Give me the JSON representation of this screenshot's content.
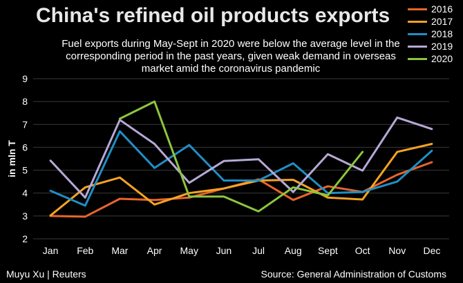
{
  "header": {
    "title": "China's refined oil products exports",
    "subtitle": "Fuel exports during May-Sept in 2020 were below the average level in the corresponding period in the past years, given weak demand in overseas market amid the coronavirus pandemic"
  },
  "footer": {
    "credit": "Muyu Xu | Reuters",
    "source": "Source: General Administration of Customs"
  },
  "chart_data": {
    "type": "line",
    "title": "China's refined oil products exports",
    "ylabel": "in mln T",
    "xlabel": "",
    "categories": [
      "Jan",
      "Feb",
      "Mar",
      "Apr",
      "May",
      "Jun",
      "Jul",
      "Aug",
      "Sept",
      "Oct",
      "Nov",
      "Dec"
    ],
    "ylim": [
      2,
      9
    ],
    "yticks": [
      2,
      3,
      4,
      5,
      6,
      7,
      8,
      9
    ],
    "grid": true,
    "legend": "top-right",
    "series": [
      {
        "name": "2016",
        "color": "#e8652c",
        "values": [
          3.0,
          2.97,
          3.75,
          3.7,
          3.8,
          4.2,
          4.6,
          3.7,
          4.3,
          4.05,
          4.8,
          5.35
        ]
      },
      {
        "name": "2017",
        "color": "#f6a324",
        "values": [
          3.02,
          4.25,
          4.68,
          3.5,
          4.0,
          4.2,
          4.55,
          4.58,
          3.8,
          3.72,
          5.8,
          6.15
        ]
      },
      {
        "name": "2018",
        "color": "#1f8fc6",
        "values": [
          4.1,
          3.45,
          6.7,
          5.1,
          6.1,
          4.55,
          4.55,
          5.3,
          4.0,
          4.05,
          4.5,
          5.85
        ]
      },
      {
        "name": "2019",
        "color": "#b6a9d6",
        "values": [
          5.42,
          3.8,
          7.2,
          6.15,
          4.45,
          5.4,
          5.48,
          4.05,
          5.7,
          4.98,
          7.3,
          6.8
        ]
      },
      {
        "name": "2020",
        "color": "#8cc63f",
        "values": [
          null,
          null,
          7.25,
          8.0,
          3.85,
          3.85,
          3.2,
          4.25,
          3.9,
          5.8,
          null,
          null
        ]
      }
    ]
  }
}
